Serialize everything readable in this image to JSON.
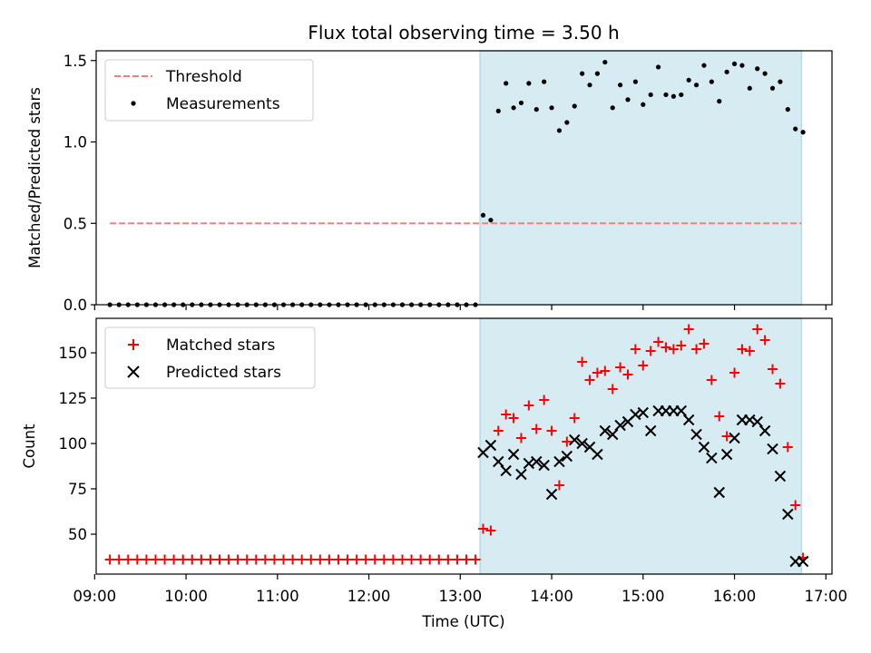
{
  "figure_title": "Flux total observing time = 3.50 h",
  "chart_data": [
    {
      "type": "scatter",
      "panel": "top",
      "title": "Flux total observing time = 3.50 h",
      "ylabel": "Matched/Predicted stars",
      "xlabel": "",
      "xlim": [
        "09:01",
        "17:04"
      ],
      "ylim": [
        0,
        1.56
      ],
      "yticks": [
        0,
        0.5,
        1.0,
        1.5
      ],
      "ytick_labels": [
        "0.0",
        "0.5",
        "1.0",
        "1.5"
      ],
      "grid": false,
      "legend": "top-left",
      "legend_entries": [
        "Threshold",
        "Measurements"
      ],
      "shaded_span": {
        "start": "13:13",
        "end": "16:44",
        "color": "#add8e6"
      },
      "threshold": {
        "name": "Threshold",
        "value": 0.5,
        "x_start": "09:10",
        "x_end": "16:44",
        "color": "#f08080",
        "style": "dashed"
      },
      "series": [
        {
          "name": "Measurements",
          "color": "#000000",
          "marker": "dot",
          "x": [
            "09:10",
            "09:16",
            "09:22",
            "09:28",
            "09:34",
            "09:40",
            "09:46",
            "09:52",
            "09:58",
            "10:04",
            "10:10",
            "10:16",
            "10:22",
            "10:28",
            "10:34",
            "10:40",
            "10:46",
            "10:52",
            "10:58",
            "11:04",
            "11:10",
            "11:16",
            "11:22",
            "11:28",
            "11:34",
            "11:40",
            "11:46",
            "11:52",
            "11:58",
            "12:04",
            "12:10",
            "12:16",
            "12:22",
            "12:28",
            "12:34",
            "12:40",
            "12:46",
            "12:52",
            "12:58",
            "13:04",
            "13:10",
            "13:15",
            "13:20",
            "13:25",
            "13:30",
            "13:35",
            "13:40",
            "13:45",
            "13:50",
            "13:55",
            "14:00",
            "14:05",
            "14:10",
            "14:15",
            "14:20",
            "14:25",
            "14:30",
            "14:35",
            "14:40",
            "14:45",
            "14:50",
            "14:55",
            "15:00",
            "15:05",
            "15:10",
            "15:15",
            "15:20",
            "15:25",
            "15:30",
            "15:35",
            "15:40",
            "15:45",
            "15:50",
            "15:55",
            "16:00",
            "16:05",
            "16:10",
            "16:15",
            "16:20",
            "16:25",
            "16:30",
            "16:35",
            "16:40",
            "16:45"
          ],
          "y": [
            0,
            0,
            0,
            0,
            0,
            0,
            0,
            0,
            0,
            0,
            0,
            0,
            0,
            0,
            0,
            0,
            0,
            0,
            0,
            0,
            0,
            0,
            0,
            0,
            0,
            0,
            0,
            0,
            0,
            0,
            0,
            0,
            0,
            0,
            0,
            0,
            0,
            0,
            0,
            0,
            0,
            0.55,
            0.52,
            1.19,
            1.36,
            1.21,
            1.24,
            1.36,
            1.2,
            1.37,
            1.21,
            1.07,
            1.12,
            1.22,
            1.42,
            1.35,
            1.42,
            1.49,
            1.21,
            1.35,
            1.26,
            1.37,
            1.23,
            1.29,
            1.46,
            1.29,
            1.28,
            1.29,
            1.38,
            1.35,
            1.47,
            1.37,
            1.25,
            1.43,
            1.48,
            1.47,
            1.33,
            1.45,
            1.42,
            1.33,
            1.37,
            1.2,
            1.08,
            1.06
          ]
        }
      ]
    },
    {
      "type": "scatter",
      "panel": "bottom",
      "ylabel": "Count",
      "xlabel": "Time (UTC)",
      "xlim": [
        "09:01",
        "17:04"
      ],
      "ylim": [
        28,
        169
      ],
      "yticks": [
        50,
        75,
        100,
        125,
        150
      ],
      "ytick_labels": [
        "50",
        "75",
        "100",
        "125",
        "150"
      ],
      "xticks": [
        "09:00",
        "10:00",
        "11:00",
        "12:00",
        "13:00",
        "14:00",
        "15:00",
        "16:00",
        "17:00"
      ],
      "xtick_labels": [
        "09:00",
        "10:00",
        "11:00",
        "12:00",
        "13:00",
        "14:00",
        "15:00",
        "16:00",
        "17:00"
      ],
      "grid": false,
      "legend": "top-left",
      "legend_entries": [
        "Matched stars",
        "Predicted stars"
      ],
      "shaded_span": {
        "start": "13:13",
        "end": "16:44",
        "color": "#add8e6"
      },
      "series": [
        {
          "name": "Matched stars",
          "color": "#ff0000",
          "marker": "plus",
          "x": [
            "09:10",
            "09:16",
            "09:22",
            "09:28",
            "09:34",
            "09:40",
            "09:46",
            "09:52",
            "09:58",
            "10:04",
            "10:10",
            "10:16",
            "10:22",
            "10:28",
            "10:34",
            "10:40",
            "10:46",
            "10:52",
            "10:58",
            "11:04",
            "11:10",
            "11:16",
            "11:22",
            "11:28",
            "11:34",
            "11:40",
            "11:46",
            "11:52",
            "11:58",
            "12:04",
            "12:10",
            "12:16",
            "12:22",
            "12:28",
            "12:34",
            "12:40",
            "12:46",
            "12:52",
            "12:58",
            "13:04",
            "13:10",
            "13:15",
            "13:20",
            "13:25",
            "13:30",
            "13:35",
            "13:40",
            "13:45",
            "13:50",
            "13:55",
            "14:00",
            "14:05",
            "14:10",
            "14:15",
            "14:20",
            "14:25",
            "14:30",
            "14:35",
            "14:40",
            "14:45",
            "14:50",
            "14:55",
            "15:00",
            "15:05",
            "15:10",
            "15:15",
            "15:20",
            "15:25",
            "15:30",
            "15:35",
            "15:40",
            "15:45",
            "15:50",
            "15:55",
            "16:00",
            "16:05",
            "16:10",
            "16:15",
            "16:20",
            "16:25",
            "16:30",
            "16:35",
            "16:40",
            "16:45"
          ],
          "y": [
            36,
            36,
            36,
            36,
            36,
            36,
            36,
            36,
            36,
            36,
            36,
            36,
            36,
            36,
            36,
            36,
            36,
            36,
            36,
            36,
            36,
            36,
            36,
            36,
            36,
            36,
            36,
            36,
            36,
            36,
            36,
            36,
            36,
            36,
            36,
            36,
            36,
            36,
            36,
            36,
            36,
            53,
            52,
            107,
            116,
            114,
            103,
            121,
            108,
            124,
            107,
            77,
            101,
            114,
            145,
            135,
            139,
            140,
            130,
            142,
            138,
            152,
            143,
            151,
            156,
            153,
            152,
            154,
            163,
            152,
            155,
            135,
            115,
            104,
            139,
            152,
            151,
            163,
            157,
            141,
            133,
            98,
            66,
            37
          ]
        },
        {
          "name": "Predicted stars",
          "color": "#000000",
          "marker": "cross",
          "x": [
            "13:15",
            "13:20",
            "13:25",
            "13:30",
            "13:35",
            "13:40",
            "13:45",
            "13:50",
            "13:55",
            "14:00",
            "14:05",
            "14:10",
            "14:15",
            "14:20",
            "14:25",
            "14:30",
            "14:35",
            "14:40",
            "14:45",
            "14:50",
            "14:55",
            "15:00",
            "15:05",
            "15:10",
            "15:15",
            "15:20",
            "15:25",
            "15:30",
            "15:35",
            "15:40",
            "15:45",
            "15:50",
            "15:55",
            "16:00",
            "16:05",
            "16:10",
            "16:15",
            "16:20",
            "16:25",
            "16:30",
            "16:35",
            "16:40",
            "16:45"
          ],
          "y": [
            95,
            99,
            90,
            85,
            94,
            83,
            89,
            90,
            88,
            72,
            90,
            93,
            102,
            100,
            98,
            94,
            107,
            105,
            110,
            112,
            116,
            117,
            107,
            118,
            118,
            118,
            118,
            113,
            105,
            98,
            92,
            73,
            94,
            103,
            113,
            113,
            112,
            107,
            97,
            82,
            61,
            35,
            35
          ]
        }
      ]
    }
  ]
}
